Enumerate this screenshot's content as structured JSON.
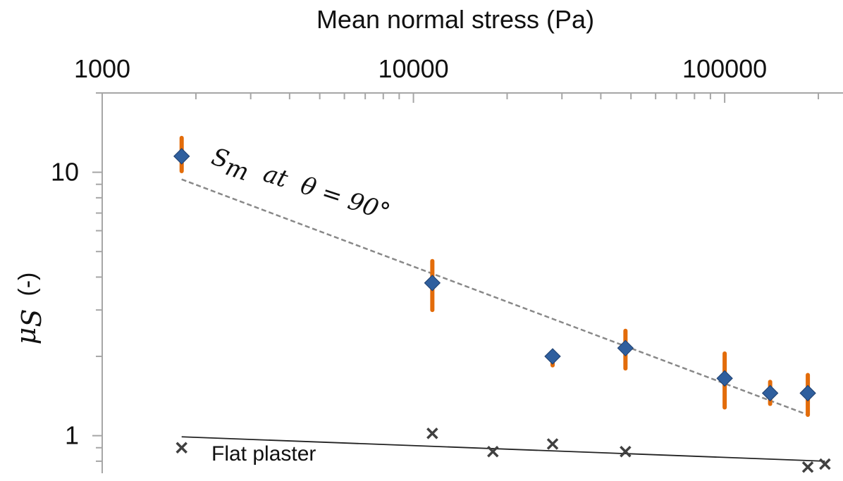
{
  "chart_data": {
    "type": "scatter",
    "title": "Mean normal stress  (Pa)",
    "xlabel": "Mean normal stress  (Pa)",
    "ylabel_symbol": "μ",
    "ylabel_subscript": "S",
    "ylabel_unit": "(-)",
    "xscale": "log",
    "yscale": "log",
    "xlim": [
      1000,
      240000
    ],
    "ylim": [
      0.72,
      20
    ],
    "x_axis_position": "top",
    "x_ticks": [
      1000,
      10000,
      100000
    ],
    "x_tick_labels": [
      "1000",
      "10000",
      "100000"
    ],
    "y_ticks": [
      1,
      10
    ],
    "y_tick_labels": [
      "1",
      "10"
    ],
    "series": [
      {
        "name": "Sm at θ = 90°",
        "marker": "diamond",
        "color": "#2f5f9e",
        "x": [
          1800,
          11500,
          28000,
          48000,
          100000,
          140000,
          185000
        ],
        "y": [
          11.5,
          3.8,
          2.0,
          2.15,
          1.65,
          1.45,
          1.45
        ],
        "error_low": [
          10.1,
          3.0,
          1.85,
          1.8,
          1.28,
          1.32,
          1.2
        ],
        "error_high": [
          13.5,
          4.6,
          2.05,
          2.5,
          2.05,
          1.6,
          1.7
        ],
        "error_color": "#e36c0a"
      },
      {
        "name": "Flat plaster",
        "marker": "x",
        "color": "#404040",
        "x": [
          1800,
          11500,
          18000,
          28000,
          48000,
          185000,
          210000
        ],
        "y": [
          0.9,
          1.02,
          0.87,
          0.93,
          0.87,
          0.76,
          0.78
        ]
      }
    ],
    "fit_lines": [
      {
        "name": "Sm fit",
        "style": "dashed",
        "color": "#888888",
        "x": [
          1800,
          185000
        ],
        "y": [
          9.4,
          1.2
        ]
      },
      {
        "name": "Flat plaster fit",
        "style": "solid",
        "color": "#222222",
        "x": [
          1800,
          210000
        ],
        "y": [
          0.99,
          0.8
        ]
      }
    ],
    "annotations": [
      {
        "text_main": "S",
        "text_sub": "m",
        "text_rest": "  at  θ = 90°"
      },
      {
        "text": "Flat plaster"
      }
    ]
  }
}
